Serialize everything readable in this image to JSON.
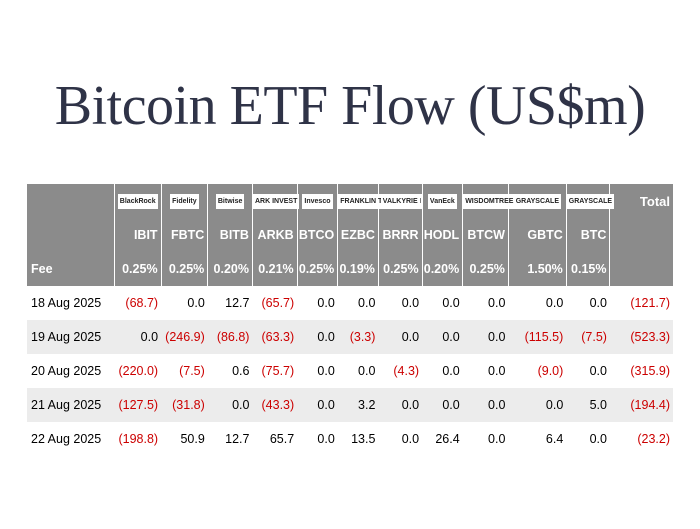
{
  "title": "Bitcoin ETF Flow (US$m)",
  "table": {
    "total_label": "Total",
    "fee_label": "Fee",
    "logos": [
      {
        "name": "BlackRock",
        "icon": "blackrock-logo"
      },
      {
        "name": "Fidelity",
        "icon": "fidelity-logo"
      },
      {
        "name": "Bitwise",
        "icon": "bitwise-logo"
      },
      {
        "name": "ARK INVEST",
        "icon": "ark-invest-logo"
      },
      {
        "name": "Invesco",
        "icon": "invesco-logo"
      },
      {
        "name": "FRANKLIN TEMPLETON",
        "icon": "franklin-templeton-logo"
      },
      {
        "name": "VALKYRIE",
        "icon": "valkyrie-logo"
      },
      {
        "name": "VanEck",
        "icon": "vaneck-logo"
      },
      {
        "name": "WISDOMTREE",
        "icon": "wisdomtree-logo"
      },
      {
        "name": "GRAYSCALE",
        "icon": "grayscale-logo"
      },
      {
        "name": "GRAYSCALE",
        "icon": "grayscale-logo"
      }
    ],
    "tickers": [
      "IBIT",
      "FBTC",
      "BITB",
      "ARKB",
      "BTCO",
      "EZBC",
      "BRRR",
      "HODL",
      "BTCW",
      "GBTC",
      "BTC"
    ],
    "fees": [
      "0.25%",
      "0.25%",
      "0.20%",
      "0.21%",
      "0.25%",
      "0.19%",
      "0.25%",
      "0.20%",
      "0.25%",
      "1.50%",
      "0.15%"
    ],
    "rows": [
      {
        "date": "18 Aug 2025",
        "values": [
          "(68.7)",
          "0.0",
          "12.7",
          "(65.7)",
          "0.0",
          "0.0",
          "0.0",
          "0.0",
          "0.0",
          "0.0",
          "0.0"
        ],
        "total": "(121.7)"
      },
      {
        "date": "19 Aug 2025",
        "values": [
          "0.0",
          "(246.9)",
          "(86.8)",
          "(63.3)",
          "0.0",
          "(3.3)",
          "0.0",
          "0.0",
          "0.0",
          "(115.5)",
          "(7.5)"
        ],
        "total": "(523.3)"
      },
      {
        "date": "20 Aug 2025",
        "values": [
          "(220.0)",
          "(7.5)",
          "0.6",
          "(75.7)",
          "0.0",
          "0.0",
          "(4.3)",
          "0.0",
          "0.0",
          "(9.0)",
          "0.0"
        ],
        "total": "(315.9)"
      },
      {
        "date": "21 Aug 2025",
        "values": [
          "(127.5)",
          "(31.8)",
          "0.0",
          "(43.3)",
          "0.0",
          "3.2",
          "0.0",
          "0.0",
          "0.0",
          "0.0",
          "5.0"
        ],
        "total": "(194.4)"
      },
      {
        "date": "22 Aug 2025",
        "values": [
          "(198.8)",
          "50.9",
          "12.7",
          "65.7",
          "0.0",
          "13.5",
          "0.0",
          "26.4",
          "0.0",
          "6.4",
          "0.0"
        ],
        "total": "(23.2)"
      }
    ]
  }
}
